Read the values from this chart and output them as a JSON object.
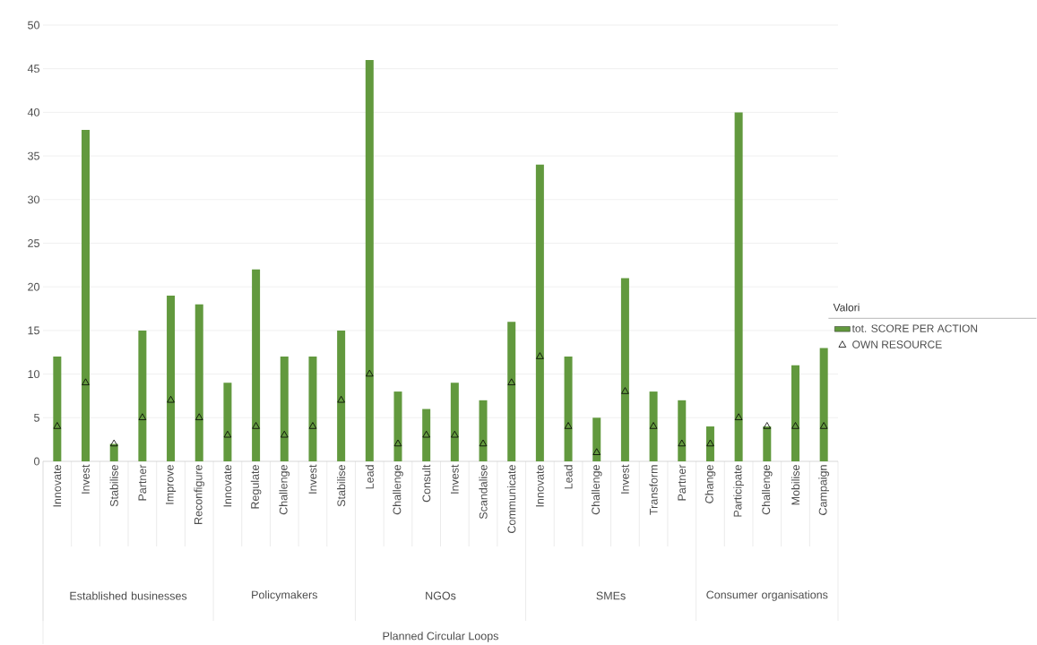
{
  "chart_data": {
    "type": "bar",
    "categories": [
      "Innovate",
      "Invest",
      "Stabilise",
      "Partner",
      "Improve",
      "Reconfigure",
      "Innovate",
      "Regulate",
      "Challenge",
      "Invest",
      "Stabilise",
      "Lead",
      "Challenge",
      "Consult",
      "Invest",
      "Scandalise",
      "Communicate",
      "Innovate",
      "Lead",
      "Challenge",
      "Invest",
      "Transform",
      "Partner",
      "Change",
      "Participate",
      "Challenge",
      "Mobilise",
      "Campaign"
    ],
    "series": [
      {
        "name": "tot. SCORE PER ACTION",
        "color": "#62993e",
        "values": [
          12,
          38,
          2,
          15,
          19,
          18,
          9,
          22,
          12,
          12,
          15,
          46,
          8,
          6,
          9,
          7,
          16,
          34,
          12,
          5,
          21,
          8,
          7,
          4,
          40,
          4,
          11,
          13
        ]
      },
      {
        "name": "OWN RESOURCE",
        "type": "scatter",
        "marker": "triangle",
        "color": "#000000",
        "values": [
          4,
          9,
          2,
          5,
          7,
          5,
          3,
          4,
          3,
          4,
          7,
          10,
          2,
          3,
          3,
          2,
          9,
          12,
          4,
          1,
          8,
          4,
          2,
          2,
          5,
          4,
          4,
          4
        ]
      }
    ],
    "annotations": [
      "Established businesses",
      "Policymakers",
      "NGOs",
      "SMEs",
      "Consumer organisations",
      "Planned Circular Loops"
    ],
    "legend_title": "Valori",
    "legend": "right",
    "ylim": [
      0,
      50
    ],
    "yticks": [
      0,
      5,
      10,
      15,
      20,
      25,
      30,
      35,
      40,
      45,
      50
    ],
    "grid": "y"
  }
}
